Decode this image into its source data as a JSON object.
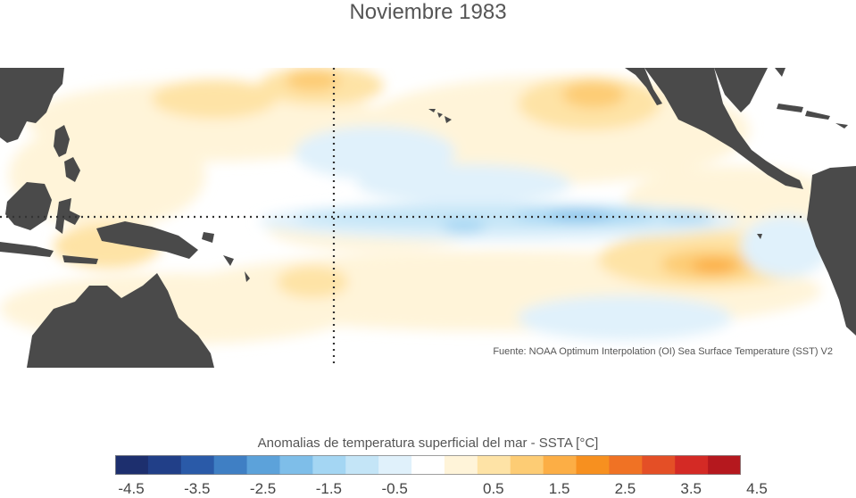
{
  "title": "Noviembre 1983",
  "source": "Fuente: NOAA Optimum Interpolation (OI) Sea Surface Temperature (SST) V2",
  "colorbar": {
    "title": "Anomalias de temperatura superficial del mar - SSTA  [°C]",
    "ticks": [
      "-4.5",
      "-3.5",
      "-2.5",
      "-1.5",
      "-0.5",
      "0.5",
      "1.5",
      "2.5",
      "3.5",
      "4.5"
    ],
    "colors": [
      "#1d2f6e",
      "#213f88",
      "#2a5aa8",
      "#3f7fc4",
      "#5ca2da",
      "#7ebee9",
      "#a4d6f3",
      "#c4e5f7",
      "#e0f1fb",
      "#ffffff",
      "#fff4d9",
      "#fee3a6",
      "#fdcc74",
      "#fcae45",
      "#f7901f",
      "#f07224",
      "#e44f26",
      "#d42a25",
      "#b5181e"
    ]
  },
  "colors": {
    "land": "#4a4a4a",
    "ocean": "#ffffff",
    "grid": "#333333"
  }
}
